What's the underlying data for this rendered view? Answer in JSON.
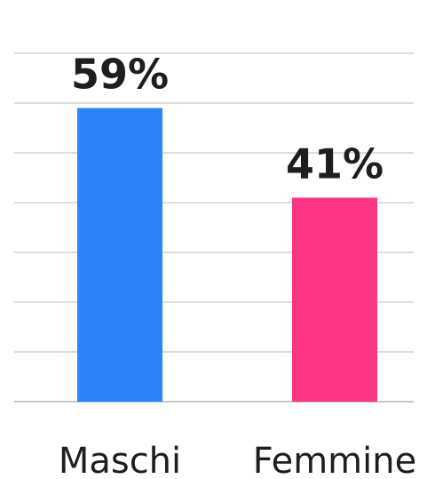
{
  "chart_data": {
    "type": "bar",
    "categories": [
      "Maschi",
      "Femmine"
    ],
    "values": [
      59,
      41
    ],
    "data_labels": [
      "59%",
      "41%"
    ],
    "colors": [
      "#2b84fb",
      "#fd3585"
    ],
    "ylim": [
      0,
      70
    ],
    "grid": true,
    "title": "",
    "xlabel": "",
    "ylabel": ""
  }
}
